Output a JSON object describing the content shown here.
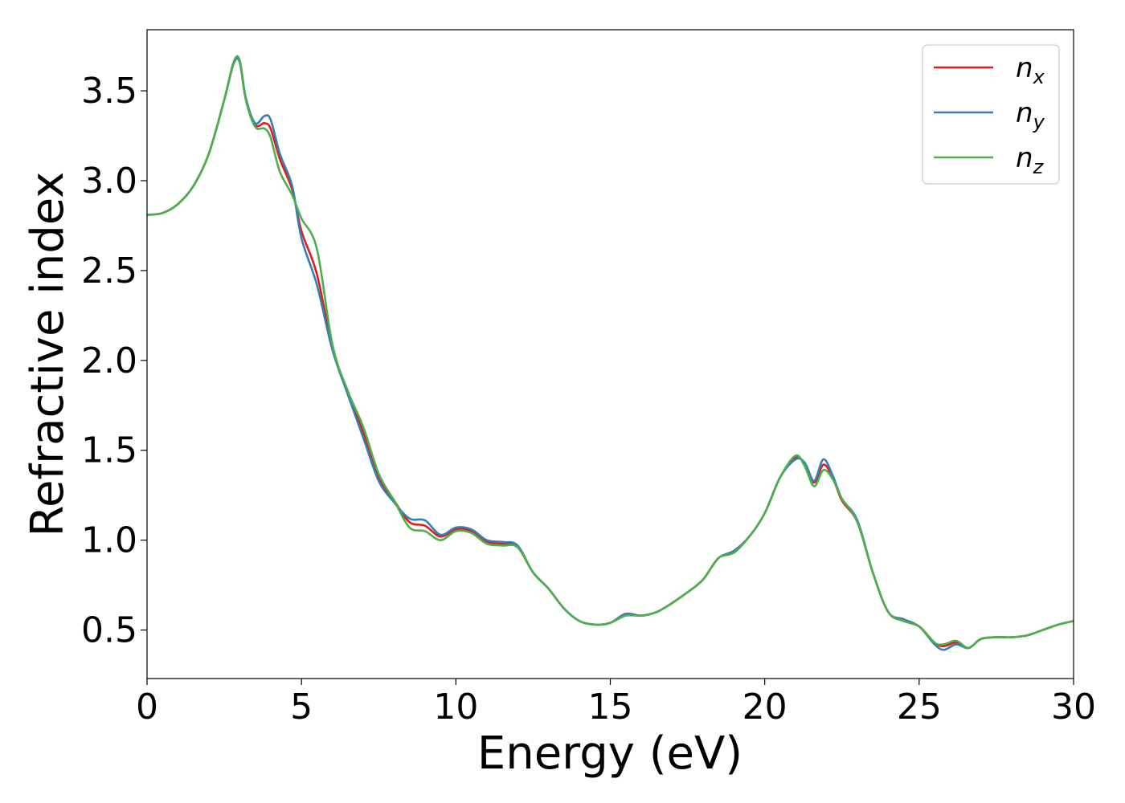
{
  "chart_data": {
    "type": "line",
    "title": "",
    "xlabel": "Energy (eV)",
    "ylabel": "Refractive index",
    "xlim": [
      0,
      30
    ],
    "ylim": [
      0.23,
      3.84
    ],
    "xticks": [
      0,
      5,
      10,
      15,
      20,
      25,
      30
    ],
    "xtick_labels": [
      "0",
      "5",
      "10",
      "15",
      "20",
      "25",
      "30"
    ],
    "yticks": [
      0.5,
      1.0,
      1.5,
      2.0,
      2.5,
      3.0,
      3.5
    ],
    "ytick_labels": [
      "0.5",
      "1.0",
      "1.5",
      "2.0",
      "2.5",
      "3.0",
      "3.5"
    ],
    "grid": false,
    "legend_position": "top-right",
    "series": [
      {
        "name": "n_x",
        "symbol": "n",
        "subscript": "x",
        "color": "#e41a1c",
        "x": [
          0,
          0.5,
          1.0,
          1.5,
          2.0,
          2.5,
          2.8,
          3.0,
          3.2,
          3.5,
          3.8,
          4.0,
          4.3,
          4.7,
          5.0,
          5.5,
          6.0,
          6.5,
          7.0,
          7.5,
          8.0,
          8.5,
          9.0,
          9.5,
          10.0,
          10.5,
          11.0,
          11.5,
          12.0,
          12.5,
          13.0,
          13.5,
          14.0,
          14.5,
          15.0,
          15.5,
          16.0,
          16.5,
          17.0,
          17.5,
          18.0,
          18.5,
          19.0,
          19.5,
          20.0,
          20.5,
          21.0,
          21.3,
          21.6,
          21.9,
          22.2,
          22.5,
          23.0,
          23.5,
          24.0,
          24.5,
          25.0,
          25.5,
          25.8,
          26.2,
          26.6,
          27.0,
          27.5,
          28.0,
          28.5,
          29.0,
          29.5,
          30.0
        ],
        "y": [
          2.81,
          2.82,
          2.87,
          2.97,
          3.15,
          3.45,
          3.65,
          3.66,
          3.45,
          3.31,
          3.32,
          3.29,
          3.12,
          2.95,
          2.72,
          2.48,
          2.07,
          1.82,
          1.6,
          1.35,
          1.22,
          1.1,
          1.08,
          1.02,
          1.06,
          1.05,
          0.99,
          0.98,
          0.96,
          0.82,
          0.73,
          0.62,
          0.55,
          0.53,
          0.54,
          0.59,
          0.58,
          0.6,
          0.65,
          0.71,
          0.78,
          0.9,
          0.94,
          1.02,
          1.15,
          1.35,
          1.46,
          1.42,
          1.32,
          1.42,
          1.35,
          1.22,
          1.1,
          0.82,
          0.6,
          0.55,
          0.52,
          0.43,
          0.41,
          0.43,
          0.4,
          0.45,
          0.46,
          0.46,
          0.47,
          0.5,
          0.53,
          0.55
        ]
      },
      {
        "name": "n_y",
        "symbol": "n",
        "subscript": "y",
        "color": "#377eb8",
        "x": [
          0,
          0.5,
          1.0,
          1.5,
          2.0,
          2.5,
          2.8,
          3.0,
          3.2,
          3.5,
          3.8,
          4.0,
          4.3,
          4.7,
          5.0,
          5.5,
          6.0,
          6.5,
          7.0,
          7.5,
          8.0,
          8.5,
          9.0,
          9.5,
          10.0,
          10.5,
          11.0,
          11.5,
          12.0,
          12.5,
          13.0,
          13.5,
          14.0,
          14.5,
          15.0,
          15.5,
          16.0,
          16.5,
          17.0,
          17.5,
          18.0,
          18.5,
          19.0,
          19.5,
          20.0,
          20.5,
          21.0,
          21.3,
          21.6,
          21.9,
          22.2,
          22.5,
          23.0,
          23.5,
          24.0,
          24.5,
          25.0,
          25.5,
          25.8,
          26.2,
          26.6,
          27.0,
          27.5,
          28.0,
          28.5,
          29.0,
          29.5,
          30.0
        ],
        "y": [
          2.81,
          2.82,
          2.87,
          2.97,
          3.15,
          3.45,
          3.65,
          3.66,
          3.46,
          3.32,
          3.36,
          3.34,
          3.15,
          2.97,
          2.68,
          2.42,
          2.06,
          1.81,
          1.57,
          1.33,
          1.21,
          1.12,
          1.11,
          1.03,
          1.07,
          1.06,
          1.0,
          0.99,
          0.97,
          0.82,
          0.73,
          0.62,
          0.55,
          0.53,
          0.54,
          0.59,
          0.58,
          0.6,
          0.65,
          0.71,
          0.78,
          0.9,
          0.94,
          1.02,
          1.15,
          1.35,
          1.45,
          1.43,
          1.33,
          1.45,
          1.36,
          1.23,
          1.11,
          0.82,
          0.6,
          0.56,
          0.52,
          0.42,
          0.39,
          0.42,
          0.4,
          0.45,
          0.46,
          0.46,
          0.47,
          0.5,
          0.53,
          0.55
        ]
      },
      {
        "name": "n_z",
        "symbol": "n",
        "subscript": "z",
        "color": "#4daf4a",
        "x": [
          0,
          0.5,
          1.0,
          1.5,
          2.0,
          2.5,
          2.8,
          3.0,
          3.2,
          3.5,
          3.8,
          4.0,
          4.3,
          4.7,
          5.0,
          5.5,
          6.0,
          6.5,
          7.0,
          7.5,
          8.0,
          8.5,
          9.0,
          9.5,
          10.0,
          10.5,
          11.0,
          11.5,
          12.0,
          12.5,
          13.0,
          13.5,
          14.0,
          14.5,
          15.0,
          15.5,
          16.0,
          16.5,
          17.0,
          17.5,
          18.0,
          18.5,
          19.0,
          19.5,
          20.0,
          20.5,
          21.0,
          21.3,
          21.6,
          21.9,
          22.2,
          22.5,
          23.0,
          23.5,
          24.0,
          24.5,
          25.0,
          25.5,
          25.8,
          26.2,
          26.6,
          27.0,
          27.5,
          28.0,
          28.5,
          29.0,
          29.5,
          30.0
        ],
        "y": [
          2.81,
          2.82,
          2.87,
          2.97,
          3.15,
          3.45,
          3.66,
          3.67,
          3.45,
          3.3,
          3.29,
          3.24,
          3.05,
          2.92,
          2.79,
          2.62,
          2.09,
          1.83,
          1.63,
          1.37,
          1.22,
          1.07,
          1.05,
          1.0,
          1.05,
          1.04,
          0.98,
          0.97,
          0.96,
          0.82,
          0.73,
          0.62,
          0.55,
          0.53,
          0.54,
          0.58,
          0.58,
          0.6,
          0.65,
          0.71,
          0.78,
          0.9,
          0.93,
          1.02,
          1.15,
          1.35,
          1.47,
          1.41,
          1.3,
          1.39,
          1.34,
          1.23,
          1.1,
          0.82,
          0.6,
          0.55,
          0.52,
          0.43,
          0.42,
          0.44,
          0.4,
          0.45,
          0.46,
          0.46,
          0.47,
          0.5,
          0.53,
          0.55
        ]
      }
    ]
  }
}
